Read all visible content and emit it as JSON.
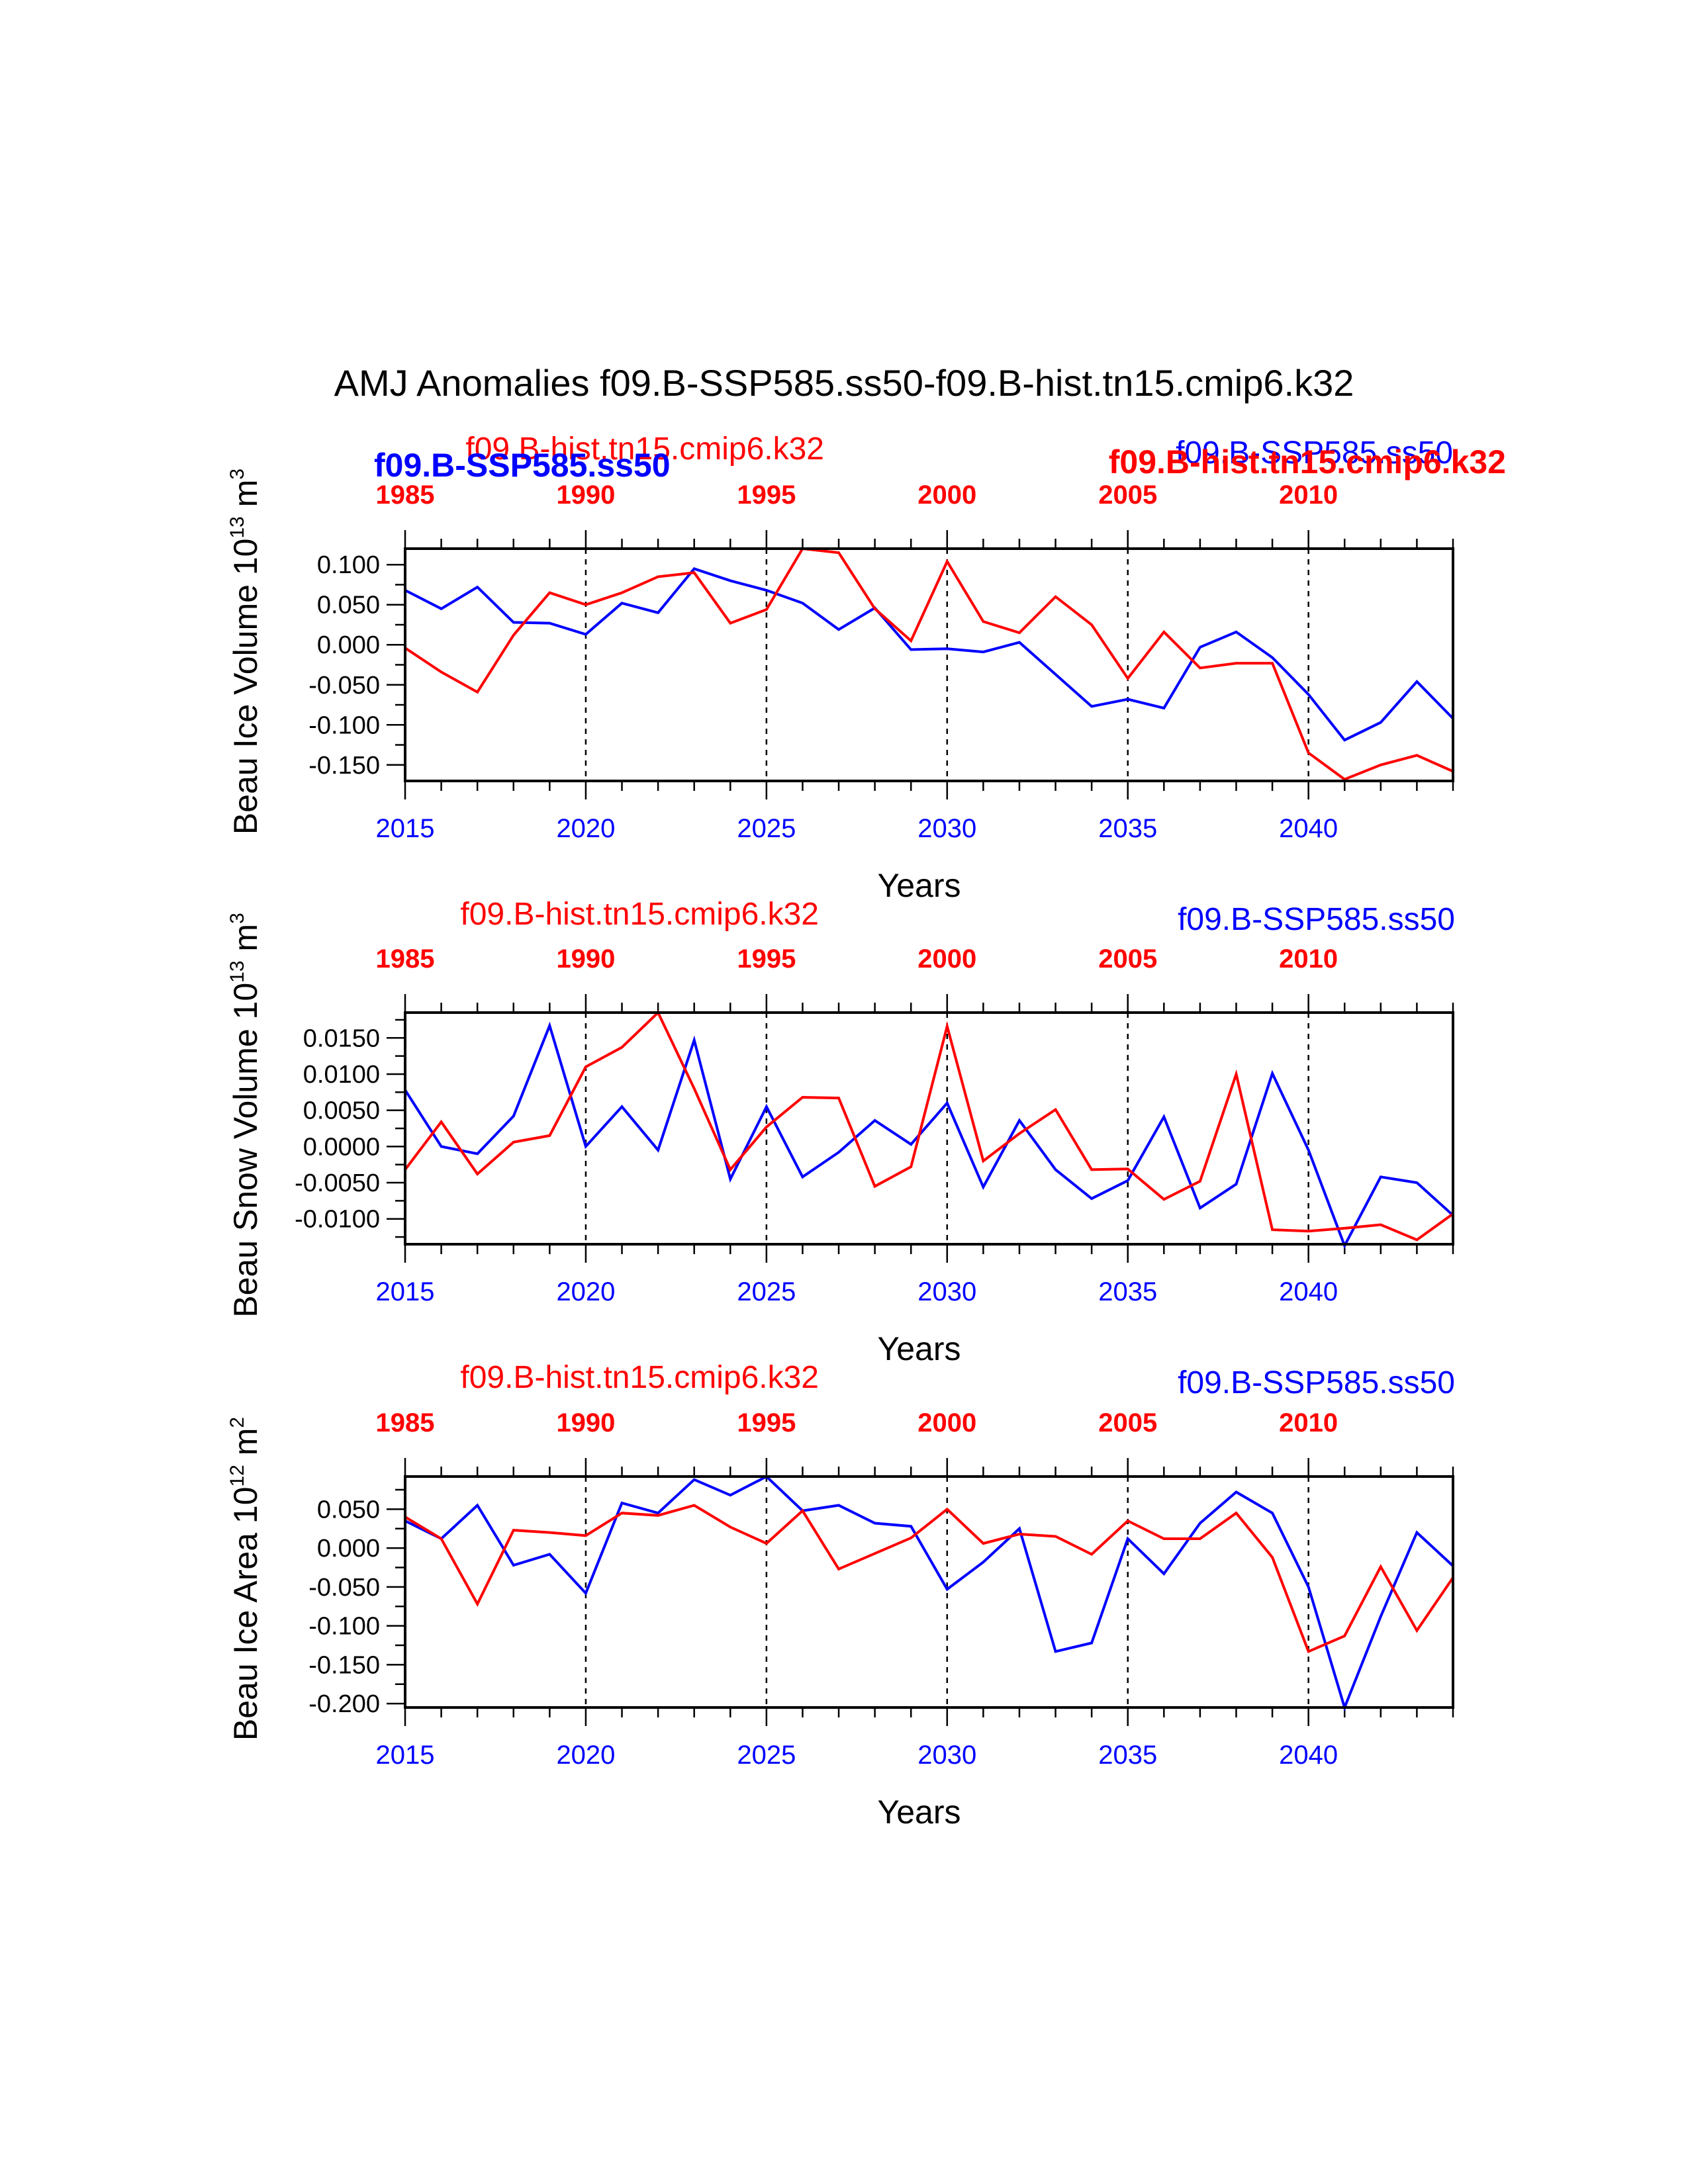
{
  "title": "AMJ Anomalies f09.B-SSP585.ss50-f09.B-hist.tn15.cmip6.k32",
  "colors": {
    "ssp": "#0000ff",
    "hist": "#ff0000",
    "axis": "#000000"
  },
  "legend": {
    "hist": "f09.B-hist.tn15.cmip6.k32",
    "ssp": "f09.B-SSP585.ss50"
  },
  "chart_data": [
    {
      "type": "line",
      "ylabel_main": "Beau Ice Volume 10",
      "ylabel_sup": "13",
      "ylabel_unit": " m",
      "ylabel_unit_sup": "3",
      "xlabel": "Years",
      "xlim": [
        2015,
        2044
      ],
      "ylim": [
        -0.17,
        0.12
      ],
      "yticks": [
        0.1,
        0.05,
        0.0,
        -0.05,
        -0.1,
        -0.15
      ],
      "ytick_labels": [
        "0.100",
        "0.050",
        "0.000",
        "-0.050",
        "-0.100",
        "-0.150"
      ],
      "yminor": 0.025,
      "bottom_ticks": [
        "2015",
        "2020",
        "2025",
        "2030",
        "2035",
        "2040"
      ],
      "top_ticks": [
        "1985",
        "1990",
        "1995",
        "2000",
        "2005",
        "2010"
      ],
      "series": [
        {
          "name": "f09.B-SSP585.ss50",
          "color": "#0000ff",
          "x_start": 2015,
          "values": [
            0.068,
            0.045,
            0.072,
            0.028,
            0.027,
            0.013,
            0.052,
            0.04,
            0.095,
            0.08,
            0.068,
            0.052,
            0.019,
            0.046,
            -0.006,
            -0.005,
            -0.009,
            0.003,
            -0.037,
            -0.077,
            -0.068,
            -0.079,
            -0.003,
            0.016,
            -0.016,
            -0.062,
            -0.119,
            -0.097,
            -0.046,
            -0.092
          ]
        },
        {
          "name": "f09.B-hist.tn15.cmip6.k32",
          "color": "#ff0000",
          "x_start": 2015,
          "values": [
            -0.004,
            -0.034,
            -0.059,
            0.012,
            0.065,
            0.05,
            0.065,
            0.085,
            0.09,
            0.027,
            0.044,
            0.12,
            0.115,
            0.045,
            0.005,
            0.104,
            0.029,
            0.015,
            0.06,
            0.025,
            -0.042,
            0.016,
            -0.029,
            -0.023,
            -0.023,
            -0.135,
            -0.168,
            -0.15,
            -0.138,
            -0.158
          ]
        }
      ]
    },
    {
      "type": "line",
      "ylabel_main": "Beau Snow Volume 10",
      "ylabel_sup": "13",
      "ylabel_unit": " m",
      "ylabel_unit_sup": "3",
      "xlabel": "Years",
      "xlim": [
        2015,
        2044
      ],
      "ylim": [
        -0.0135,
        0.0185
      ],
      "yticks": [
        0.015,
        0.01,
        0.005,
        0.0,
        -0.005,
        -0.01
      ],
      "ytick_labels": [
        "0.0150",
        "0.0100",
        "0.0050",
        "0.0000",
        "-0.0050",
        "-0.0100"
      ],
      "yminor": 0.0025,
      "bottom_ticks": [
        "2015",
        "2020",
        "2025",
        "2030",
        "2035",
        "2040"
      ],
      "top_ticks": [
        "1985",
        "1990",
        "1995",
        "2000",
        "2005",
        "2010"
      ],
      "series": [
        {
          "name": "f09.B-SSP585.ss50",
          "color": "#0000ff",
          "x_start": 2015,
          "values": [
            0.0078,
            0.0,
            -0.001,
            0.0042,
            0.0167,
            0.0,
            0.0055,
            -0.0005,
            0.0147,
            -0.0045,
            0.0055,
            -0.0042,
            -0.0008,
            0.0036,
            0.0003,
            0.006,
            -0.0056,
            0.0036,
            -0.0032,
            -0.0072,
            -0.0047,
            0.0041,
            -0.0085,
            -0.0052,
            0.0101,
            -0.0005,
            -0.0137,
            -0.0042,
            -0.005,
            -0.0095
          ]
        },
        {
          "name": "f09.B-hist.tn15.cmip6.k32",
          "color": "#ff0000",
          "x_start": 2015,
          "values": [
            -0.0032,
            0.0034,
            -0.0038,
            0.0006,
            0.0015,
            0.011,
            0.0137,
            0.0185,
            0.008,
            -0.0032,
            0.0027,
            0.0068,
            0.0067,
            -0.0055,
            -0.0028,
            0.0166,
            -0.002,
            0.0018,
            0.0051,
            -0.0032,
            -0.0031,
            -0.0073,
            -0.0048,
            0.01,
            -0.0115,
            -0.0117,
            -0.0113,
            -0.0108,
            -0.0129,
            -0.0093
          ]
        }
      ]
    },
    {
      "type": "line",
      "ylabel_main": "Beau Ice Area 10",
      "ylabel_sup": "12",
      "ylabel_unit": " m",
      "ylabel_unit_sup": "2",
      "xlabel": "Years",
      "xlim": [
        2015,
        2044
      ],
      "ylim": [
        -0.205,
        0.092
      ],
      "yticks": [
        0.05,
        0.0,
        -0.05,
        -0.1,
        -0.15,
        -0.2
      ],
      "ytick_labels": [
        "0.050",
        "0.000",
        "-0.050",
        "-0.100",
        "-0.150",
        "-0.200"
      ],
      "yminor": 0.025,
      "bottom_ticks": [
        "2015",
        "2020",
        "2025",
        "2030",
        "2035",
        "2040"
      ],
      "top_ticks": [
        "1985",
        "1990",
        "1995",
        "2000",
        "2005",
        "2010"
      ],
      "series": [
        {
          "name": "f09.B-SSP585.ss50",
          "color": "#0000ff",
          "x_start": 2015,
          "values": [
            0.035,
            0.012,
            0.055,
            -0.022,
            -0.008,
            -0.058,
            0.058,
            0.045,
            0.088,
            0.068,
            0.092,
            0.048,
            0.055,
            0.032,
            0.028,
            -0.053,
            -0.018,
            0.025,
            -0.133,
            -0.122,
            0.012,
            -0.033,
            0.032,
            0.072,
            0.045,
            -0.05,
            -0.205,
            -0.088,
            0.02,
            -0.023
          ]
        },
        {
          "name": "f09.B-hist.tn15.cmip6.k32",
          "color": "#ff0000",
          "x_start": 2015,
          "values": [
            0.04,
            0.012,
            -0.072,
            0.023,
            0.02,
            0.016,
            0.045,
            0.042,
            0.055,
            0.027,
            0.006,
            0.048,
            -0.027,
            -0.007,
            0.013,
            0.05,
            0.006,
            0.018,
            0.015,
            -0.008,
            0.035,
            0.012,
            0.012,
            0.045,
            -0.012,
            -0.133,
            -0.113,
            -0.024,
            -0.106,
            -0.038
          ]
        }
      ]
    }
  ]
}
